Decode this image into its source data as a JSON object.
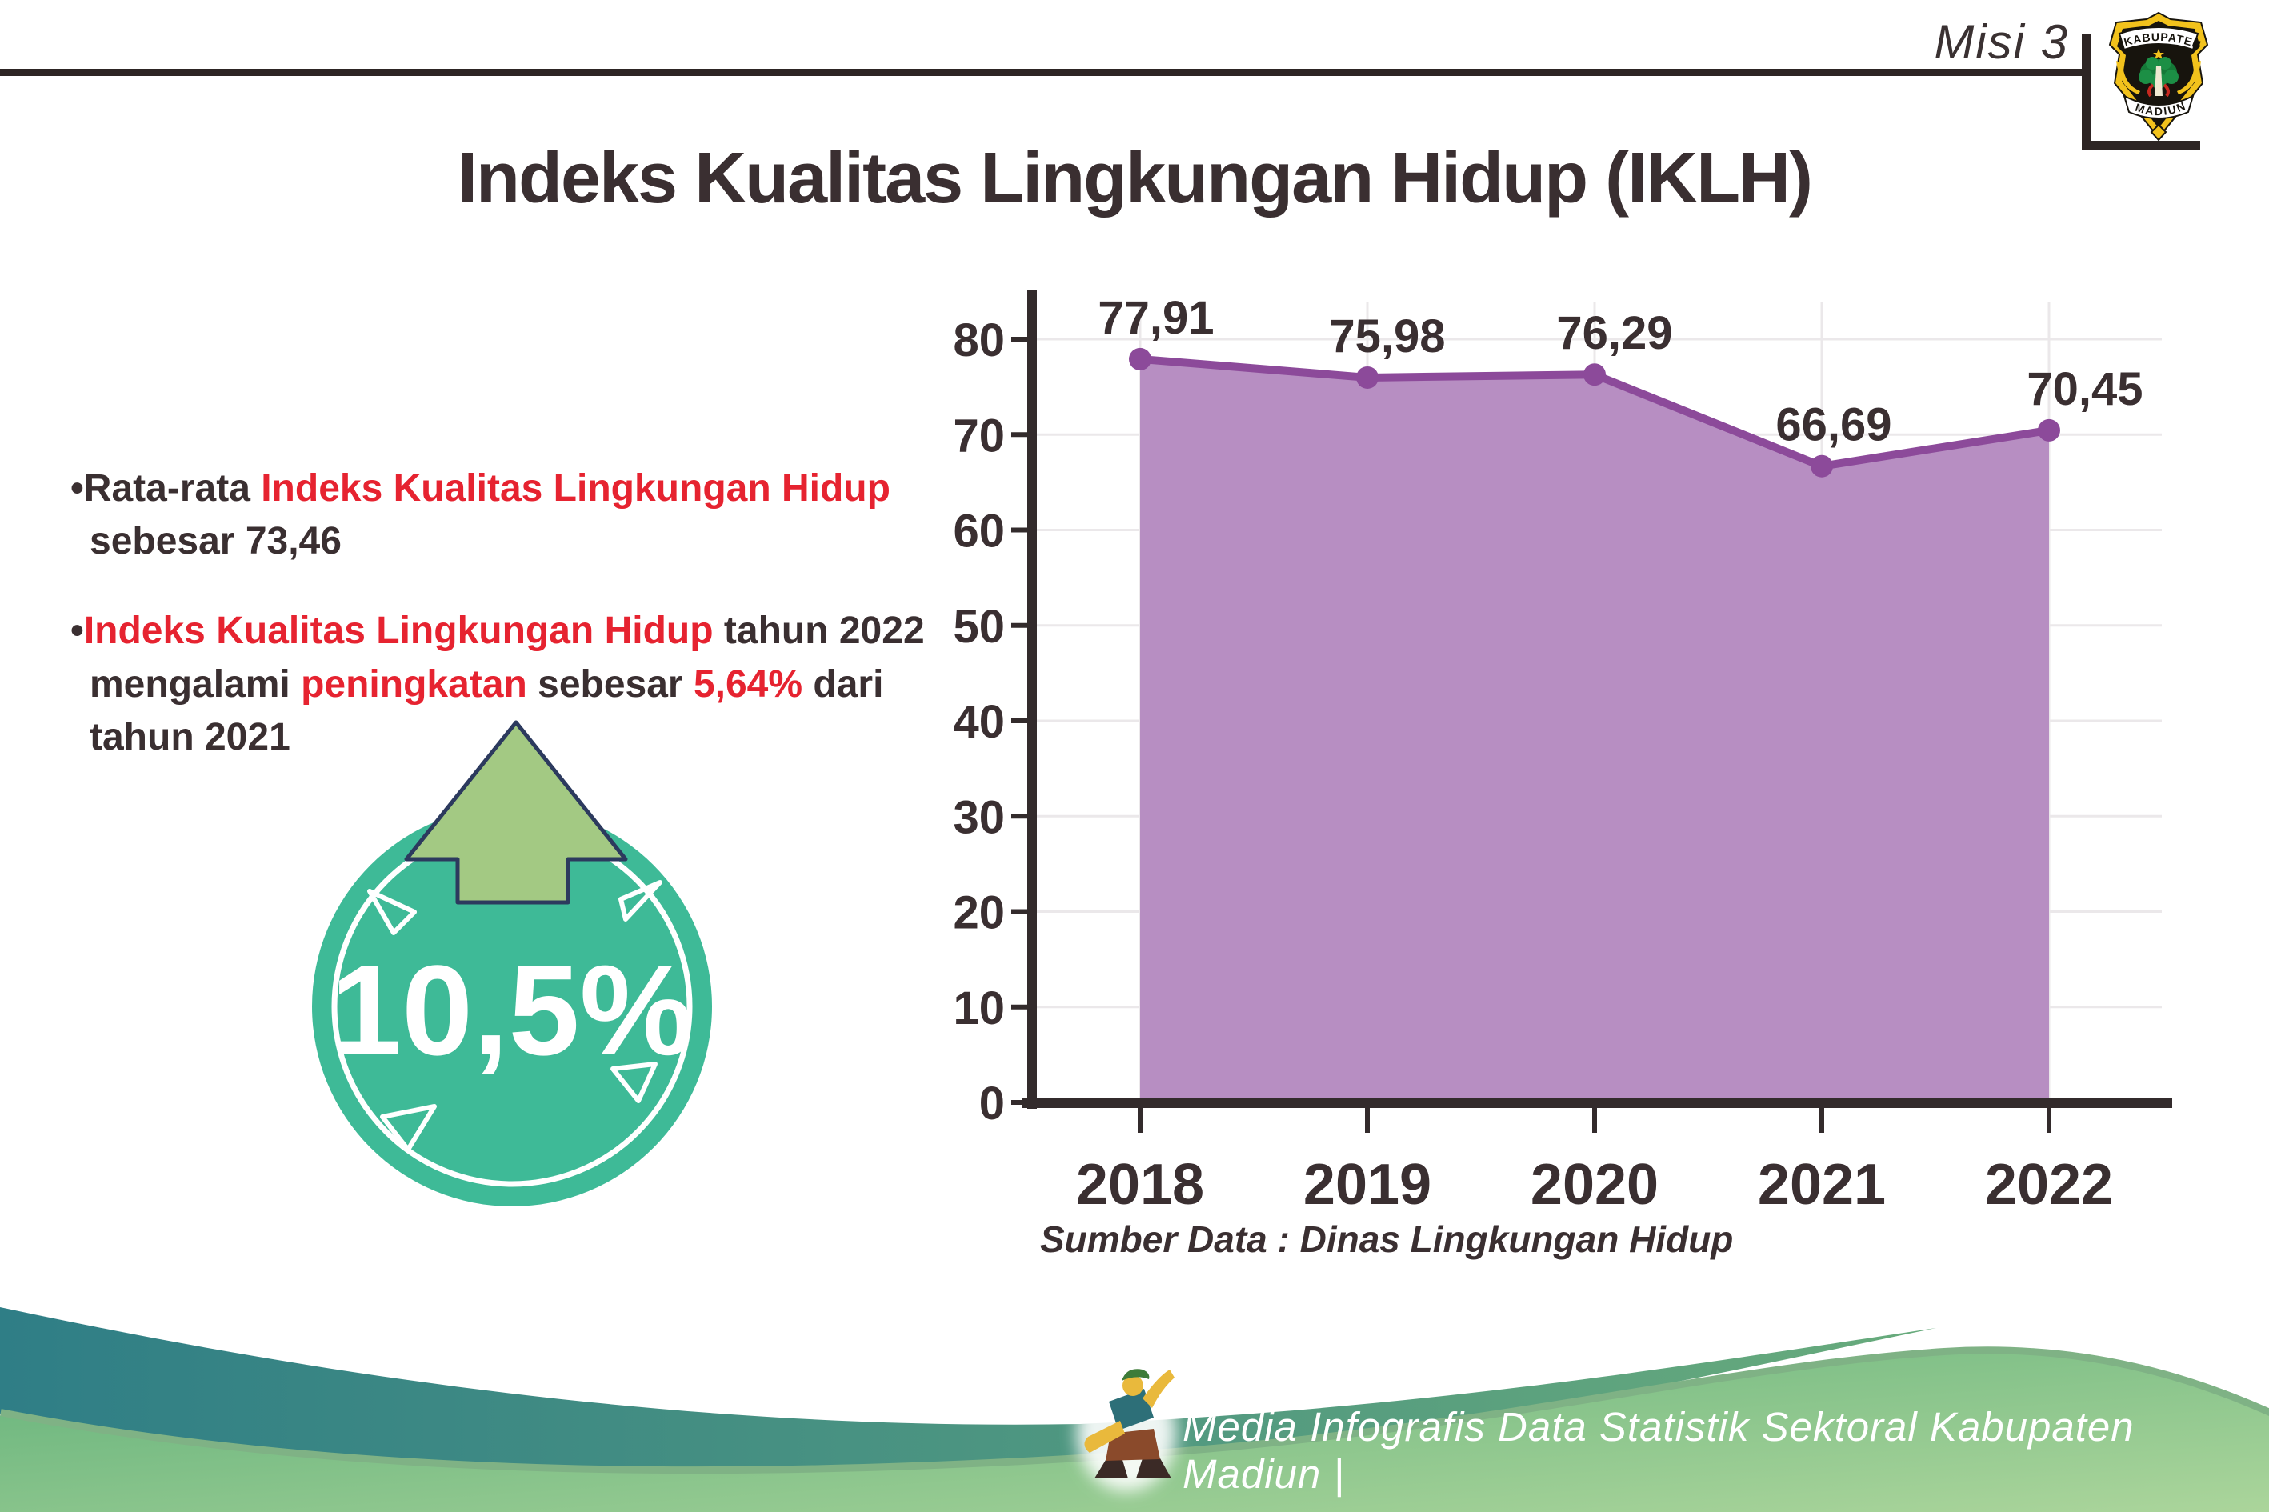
{
  "header": {
    "misi_label": "Misi 3",
    "title": "Indeks Kualitas Lingkungan Hidup (IKLH)",
    "logo_top": "KABUPATEN",
    "logo_bottom": "MADIUN"
  },
  "bullets": [
    {
      "segments": [
        {
          "t": "•Rata-rata ",
          "c": "dark"
        },
        {
          "t": "Indeks Kualitas Lingkungan Hidup",
          "c": "red"
        },
        {
          "t": " sebesar 73,46",
          "c": "dark"
        }
      ]
    },
    {
      "segments": [
        {
          "t": "•",
          "c": "dark"
        },
        {
          "t": "Indeks Kualitas Lingkungan Hidup",
          "c": "red"
        },
        {
          "t": " tahun 2022 mengalami ",
          "c": "dark"
        },
        {
          "t": "peningkatan",
          "c": "red"
        },
        {
          "t": " sebesar ",
          "c": "dark"
        },
        {
          "t": "5,64%",
          "c": "red"
        },
        {
          "t": " dari tahun 2021",
          "c": "dark"
        }
      ]
    }
  ],
  "badge": {
    "value": "10,5%"
  },
  "chart_data": {
    "type": "area",
    "categories": [
      "2018",
      "2019",
      "2020",
      "2021",
      "2022"
    ],
    "values": [
      77.91,
      75.98,
      76.29,
      66.69,
      70.45
    ],
    "value_labels": [
      "77,91",
      "75,98",
      "76,29",
      "66,69",
      "70,45"
    ],
    "series_name": "IKLH",
    "title": "",
    "xlabel": "",
    "ylabel": "",
    "ylim": [
      0,
      80
    ],
    "ytick_step": 10,
    "yticks": [
      "0",
      "10",
      "20",
      "30",
      "40",
      "50",
      "60",
      "70",
      "80"
    ],
    "grid": true,
    "legend": false,
    "source": "Sumber Data : Dinas Lingkungan Hidup",
    "colors": {
      "fill": "#b78ec2",
      "line": "#8c4a9a"
    }
  },
  "footer": {
    "caption": "Media Infografis Data Statistik Sektoral Kabupaten Madiun |"
  },
  "colors": {
    "dark_text": "#3a2f31",
    "red_text": "#e62330",
    "badge_teal": "#3eba97",
    "arrow_green": "#a3c983",
    "purple_fill": "#b78ec2",
    "purple_line": "#8c4a9a",
    "wave_teal": "#2f7e86",
    "wave_green_light": "#abd59b"
  }
}
